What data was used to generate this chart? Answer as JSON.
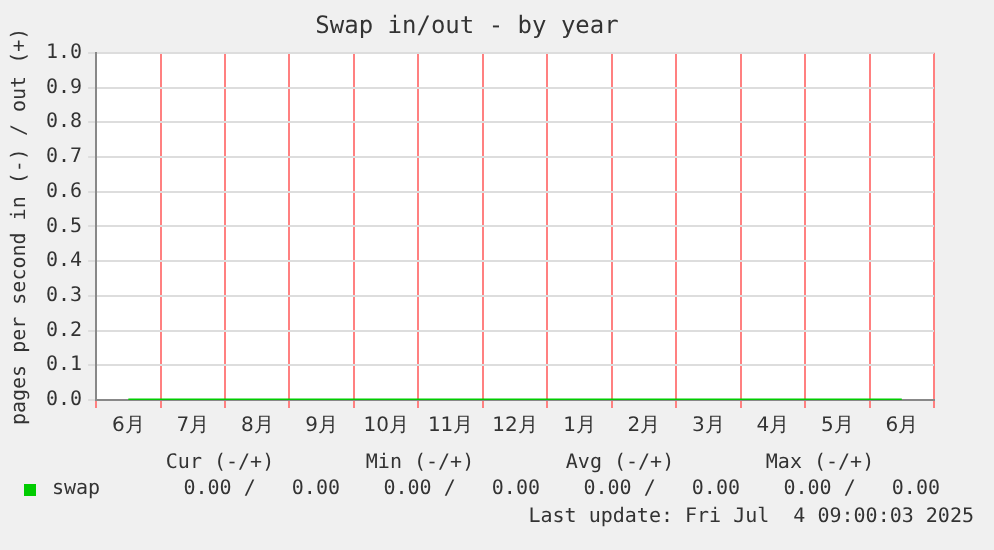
{
  "chart_data": {
    "type": "line",
    "title": "Swap in/out - by year",
    "ylabel": "pages per second in (-) / out (+)",
    "categories": [
      "6月",
      "7月",
      "8月",
      "9月",
      "10月",
      "11月",
      "12月",
      "1月",
      "2月",
      "3月",
      "4月",
      "5月",
      "6月"
    ],
    "series": [
      {
        "name": "swap",
        "color": "#00cc00",
        "values": [
          0,
          0,
          0,
          0,
          0,
          0,
          0,
          0,
          0,
          0,
          0,
          0,
          0
        ]
      }
    ],
    "ylim": [
      0,
      1
    ],
    "yticks": [
      {
        "value": 0,
        "label": "0.0"
      },
      {
        "value": 0.1,
        "label": "0.1"
      },
      {
        "value": 0.2,
        "label": "0.2"
      },
      {
        "value": 0.3,
        "label": "0.3"
      },
      {
        "value": 0.4,
        "label": "0.4"
      },
      {
        "value": 0.5,
        "label": "0.5"
      },
      {
        "value": 0.6,
        "label": "0.6"
      },
      {
        "value": 0.7,
        "label": "0.7"
      },
      {
        "value": 0.8,
        "label": "0.8"
      },
      {
        "value": 0.9,
        "label": "0.9"
      },
      {
        "value": 1,
        "label": "1.0"
      }
    ],
    "grid": true,
    "legend": "bottom",
    "marker": "none",
    "line_style": "solid",
    "annotations": [
      "Cur (-/+)",
      "Min (-/+)",
      "Avg (-/+)",
      "Max (-/+)",
      "0.00 /   0.00",
      "0.00 /   0.00",
      "0.00 /   0.00",
      "0.00 /   0.00",
      "Last update: Fri Jul  4 09:00:03 2025"
    ]
  }
}
